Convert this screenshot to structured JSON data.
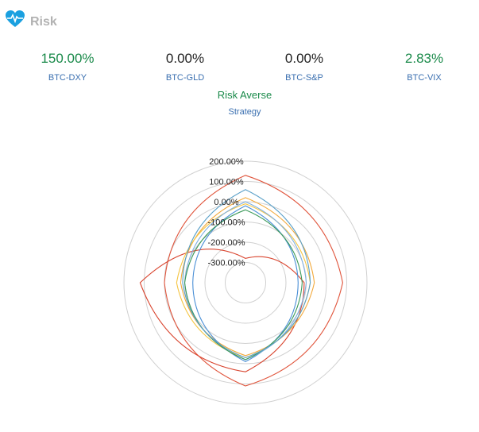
{
  "header": {
    "title": "Risk",
    "icon": "heart-pulse-icon",
    "icon_color": "#1aa0e0"
  },
  "metrics": [
    {
      "value": "150.00%",
      "label": "BTC-DXY",
      "color": "#1a8a4a"
    },
    {
      "value": "0.00%",
      "label": "BTC-GLD",
      "color": "#222222"
    },
    {
      "value": "0.00%",
      "label": "BTC-S&P",
      "color": "#222222"
    },
    {
      "value": "2.83%",
      "label": "BTC-VIX",
      "color": "#1a8a4a"
    }
  ],
  "strategy": {
    "value": "Risk Averse",
    "label": "Strategy"
  },
  "chart_data": {
    "type": "radar",
    "axis_tick_labels": [
      "200.00%",
      "100.00%",
      "0.00%",
      "-100.00%",
      "-200.00%",
      "-300.00%"
    ],
    "rlim": [
      -400,
      200
    ],
    "ticks": [
      200,
      100,
      0,
      -100,
      -200,
      -300
    ],
    "grid": true,
    "axes_count": 4,
    "series": [
      {
        "color": "#e0533a",
        "values": [
          130,
          80,
          110,
          0
        ],
        "note_values_order": "top,right,bottom,left"
      },
      {
        "color": "#d9442e",
        "values": [
          -280,
          -110,
          40,
          120
        ]
      },
      {
        "color": "#f2a93b",
        "values": [
          20,
          -60,
          -40,
          -80
        ]
      },
      {
        "color": "#4a8fd6",
        "values": [
          -20,
          -140,
          -10,
          -140
        ]
      },
      {
        "color": "#f5c542",
        "values": [
          -10,
          -80,
          -30,
          -60
        ]
      },
      {
        "color": "#7fb0e0",
        "values": [
          0,
          -100,
          -20,
          -100
        ]
      },
      {
        "color": "#3c9a5a",
        "values": [
          -40,
          -120,
          -20,
          -100
        ]
      },
      {
        "color": "#5aa0c8",
        "values": [
          60,
          -80,
          -30,
          -90
        ]
      }
    ]
  }
}
